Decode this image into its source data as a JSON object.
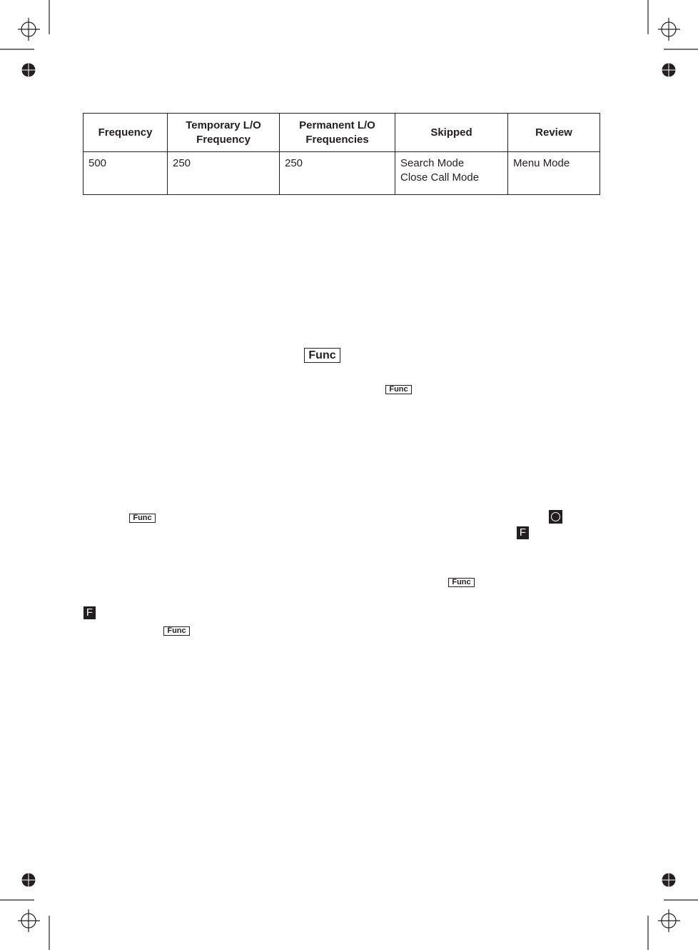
{
  "table": {
    "headers": [
      "Frequency",
      "Temporary L/O\nFrequency",
      "Permanent L/O\nFrequencies",
      "Skipped",
      "Review"
    ],
    "row": [
      "500",
      "250",
      "250",
      "Search Mode\nClose Call Mode",
      "Menu Mode"
    ]
  },
  "icons": {
    "func_label": "Func",
    "f_label": "F"
  }
}
